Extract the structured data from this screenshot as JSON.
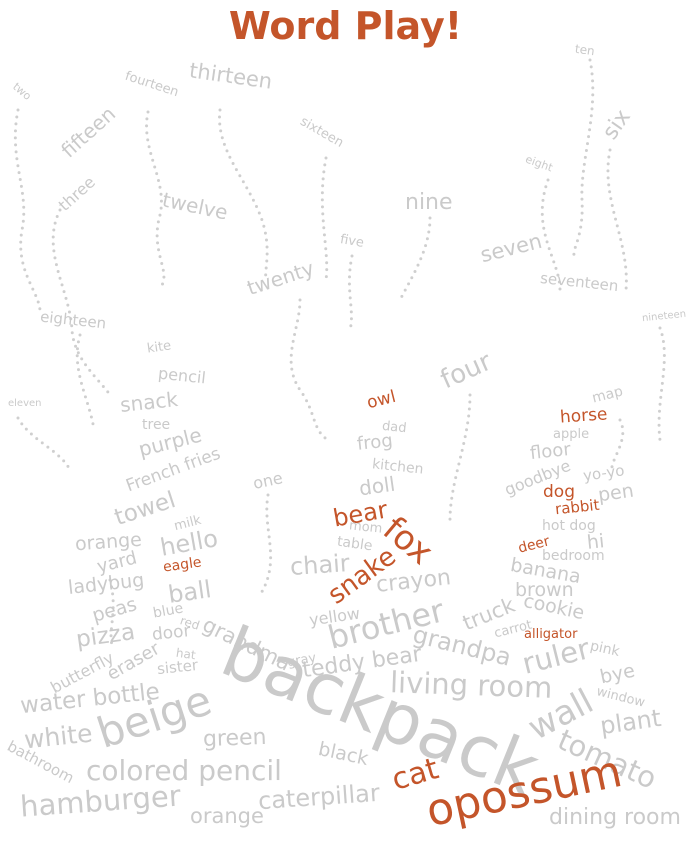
{
  "title": "Word Play!",
  "colors": {
    "accent": "#c4552a",
    "gray": "#cacaca",
    "trail": "#cfcfcf",
    "background": "#ffffff"
  },
  "words": {
    "two": "two",
    "fourteen": "fourteen",
    "thirteen": "thirteen",
    "ten": "ten",
    "fifteen": "fifteen",
    "sixteen": "sixteen",
    "six": "six",
    "three": "three",
    "twelve": "twelve",
    "eight": "eight",
    "nine": "nine",
    "five": "five",
    "twenty": "twenty",
    "seven": "seven",
    "seventeen": "seventeen",
    "eighteen": "eighteen",
    "kite": "kite",
    "nineteen": "nineteen",
    "four": "four",
    "pencil": "pencil",
    "eleven": "eleven",
    "snack": "snack",
    "owl": "owl",
    "map": "map",
    "tree": "tree",
    "horse": "horse",
    "dad": "dad",
    "purple": "purple",
    "apple": "apple",
    "frog": "frog",
    "floor": "floor",
    "french_fries": "French fries",
    "kitchen": "kitchen",
    "yo_yo": "yo-yo",
    "goodbye": "goodbye",
    "one": "one",
    "doll": "doll",
    "pen": "pen",
    "dog": "dog",
    "towel": "towel",
    "rabbit": "rabbit",
    "bear": "bear",
    "milk": "milk",
    "hot_dog": "hot dog",
    "mom": "mom",
    "fox": "fox",
    "hi": "hi",
    "orange_top": "orange",
    "hello": "hello",
    "deer": "deer",
    "table": "table",
    "bedroom": "bedroom",
    "chair": "chair",
    "yard": "yard",
    "eagle": "eagle",
    "snake": "snake",
    "banana": "banana",
    "ladybug": "ladybug",
    "crayon": "crayon",
    "brown": "brown",
    "ball": "ball",
    "cookie": "cookie",
    "peas": "peas",
    "blue": "blue",
    "yellow": "yellow",
    "truck": "truck",
    "red": "red",
    "brother": "brother",
    "carrot": "carrot",
    "alligator": "alligator",
    "pizza": "pizza",
    "door": "door",
    "grandma": "grandma",
    "pink": "pink",
    "grandpa": "grandpa",
    "hat": "hat",
    "ruler": "ruler",
    "butterfly": "butterfly",
    "gray": "gray",
    "teddy_bear": "teddy bear",
    "eraser": "eraser",
    "sister": "sister",
    "bye": "bye",
    "living_room": "living room",
    "water_bottle": "water bottle",
    "window": "window",
    "backpack": "backpack",
    "wall": "wall",
    "beige": "beige",
    "plant": "plant",
    "white": "white",
    "green": "green",
    "tomato": "tomato",
    "bathroom": "bathroom",
    "black": "black",
    "colored_pencil": "colored pencil",
    "cat": "cat",
    "opossum": "opossum",
    "hamburger": "hamburger",
    "caterpillar": "caterpillar",
    "orange_bottom": "orange",
    "dining_room": "dining room"
  }
}
